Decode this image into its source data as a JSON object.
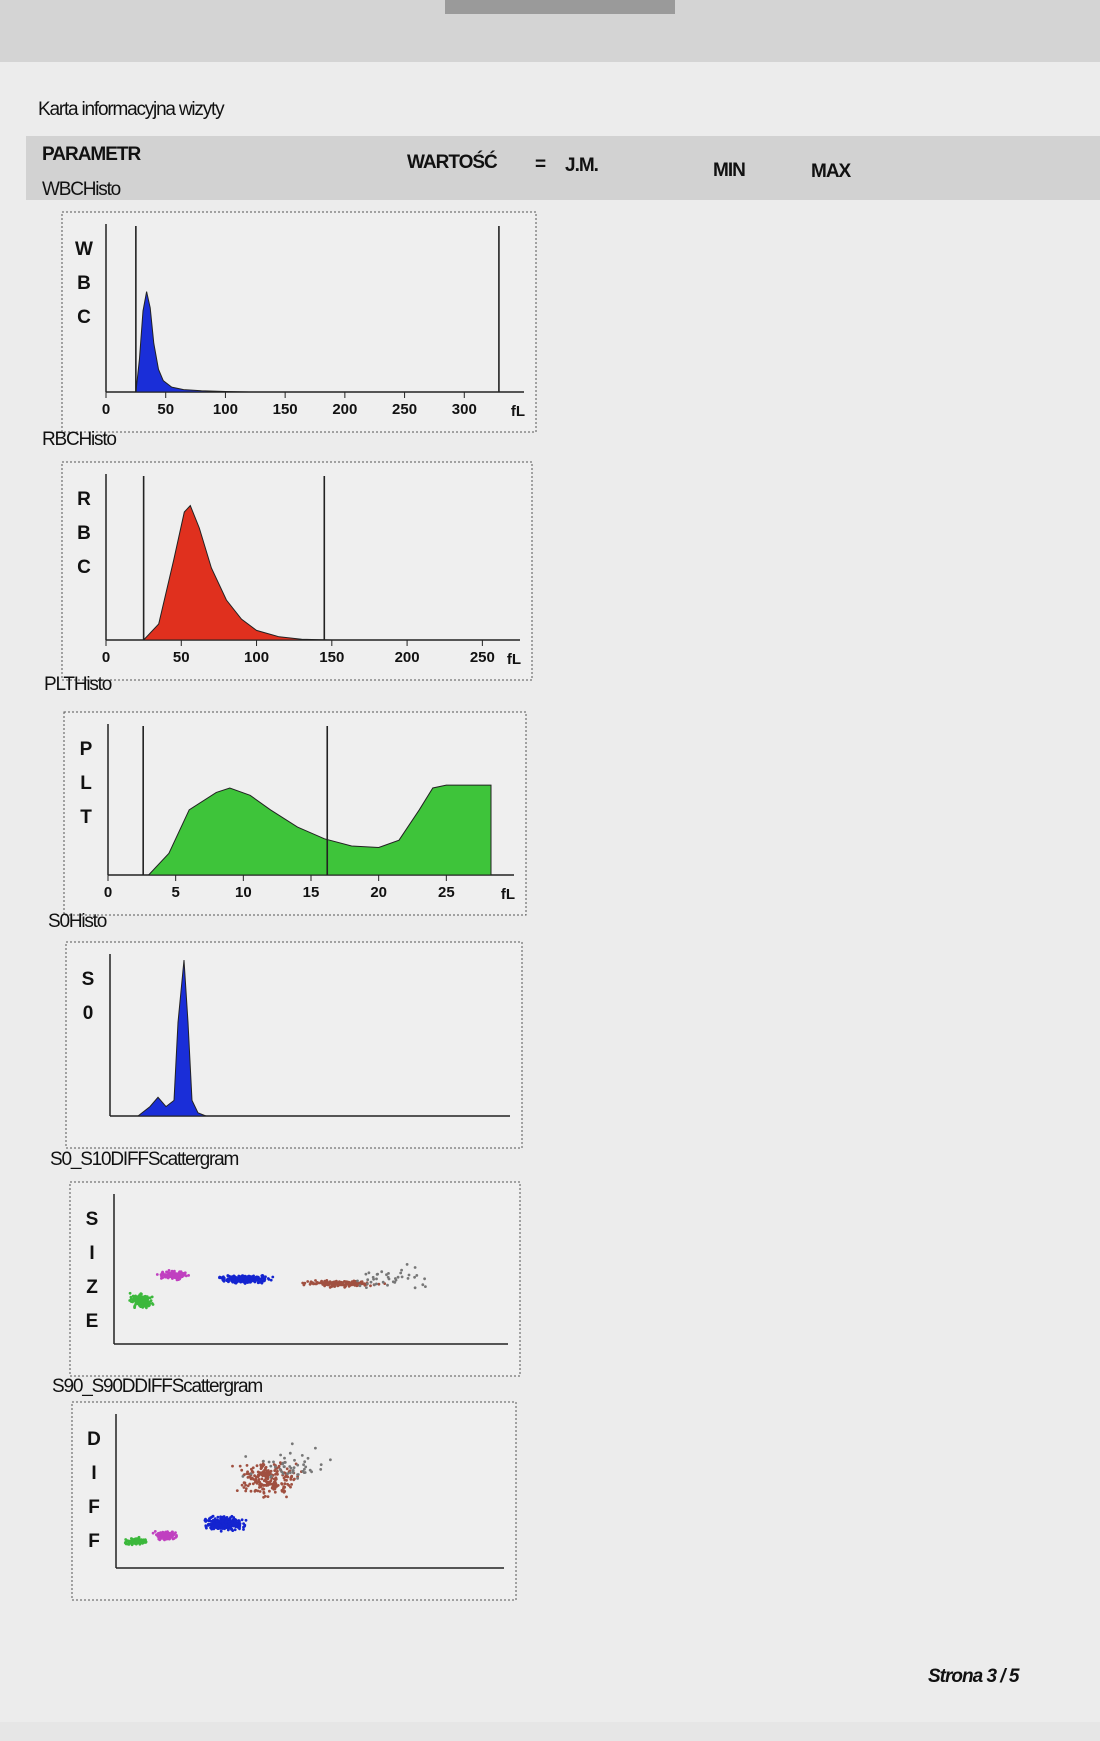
{
  "header": {
    "title": "Karta informacyjna wizyty"
  },
  "table_header": {
    "parameter": "PARAMETR",
    "value": "WARTOŚĆ",
    "equals": "=",
    "unit": "J.M.",
    "min": "MIN",
    "max": "MAX"
  },
  "panels": [
    {
      "label": "WBCHisto",
      "kind": "histogram",
      "axis_letters": [
        "W",
        "B",
        "C"
      ],
      "color": "#1a2ed8",
      "xlim": [
        0,
        350
      ],
      "xticks": [
        0,
        50,
        100,
        150,
        200,
        250,
        300
      ],
      "unit": "fL",
      "ylim": [
        0,
        100
      ],
      "markers": [
        25,
        329
      ],
      "x": [
        25,
        28,
        31,
        34,
        37,
        40,
        44,
        48,
        55,
        65,
        80,
        100,
        120
      ],
      "y": [
        0,
        20,
        50,
        62,
        52,
        30,
        14,
        7,
        3,
        1.5,
        0.8,
        0.3,
        0
      ]
    },
    {
      "label": "RBCHisto",
      "kind": "histogram",
      "axis_letters": [
        "R",
        "B",
        "C"
      ],
      "color": "#e0301e",
      "xlim": [
        0,
        275
      ],
      "xticks": [
        0,
        50,
        100,
        150,
        200,
        250
      ],
      "unit": "fL",
      "ylim": [
        0,
        100
      ],
      "markers": [
        25,
        145
      ],
      "x": [
        25,
        35,
        45,
        52,
        56,
        62,
        70,
        80,
        90,
        100,
        115,
        130,
        150
      ],
      "y": [
        0,
        10,
        50,
        80,
        84,
        70,
        45,
        25,
        13,
        6,
        2,
        0.5,
        0
      ]
    },
    {
      "label": "PLTHisto",
      "kind": "histogram",
      "axis_letters": [
        "P",
        "L",
        "T"
      ],
      "color": "#3ec43a",
      "xlim": [
        0,
        30
      ],
      "xticks": [
        0,
        5,
        10,
        15,
        20,
        25
      ],
      "unit": "fL",
      "ylim": [
        0,
        100
      ],
      "markers": [
        2.6,
        16.2
      ],
      "x": [
        3,
        4.5,
        6,
        8,
        9,
        10.5,
        12,
        14,
        16,
        18,
        20,
        21.5,
        23,
        24,
        25,
        27,
        28.3,
        28.3
      ],
      "y": [
        0,
        15,
        45,
        57,
        60,
        55,
        45,
        33,
        25,
        20,
        19,
        24,
        45,
        60,
        62,
        62,
        62,
        0
      ]
    },
    {
      "label": "S0Histo",
      "kind": "histogram",
      "axis_letters": [
        "S",
        "0"
      ],
      "color": "#1a2ed8",
      "xlim": [
        0,
        100
      ],
      "ylim": [
        0,
        100
      ],
      "x": [
        7,
        10,
        12,
        14,
        16,
        17,
        18.5,
        19.5,
        20.5,
        22,
        24
      ],
      "y": [
        0,
        6,
        12,
        6,
        10,
        60,
        100,
        60,
        10,
        2,
        0
      ]
    },
    {
      "label": "S0_S10DIFFScattergram",
      "kind": "scatter",
      "axis_letters": [
        "S",
        "I",
        "Z",
        "E"
      ]
    },
    {
      "label": "S90_S90DDIFFScattergram",
      "kind": "scatter",
      "axis_letters": [
        "D",
        "I",
        "F",
        "F"
      ]
    }
  ],
  "footer": {
    "page": "Strona 3 / 5"
  }
}
